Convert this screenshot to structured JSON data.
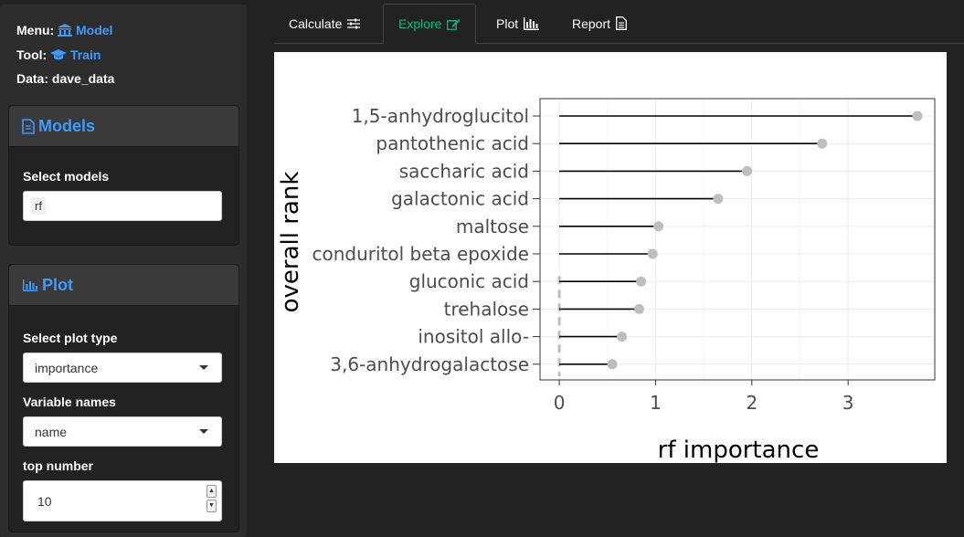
{
  "header": {
    "menu_label": "Menu:",
    "menu_value": "Model",
    "tool_label": "Tool:",
    "tool_value": "Train",
    "data_label": "Data:",
    "data_value": "dave_data"
  },
  "models_panel": {
    "title": "Models",
    "select_label": "Select models",
    "selected": "rf"
  },
  "plot_panel": {
    "title": "Plot",
    "plot_type_label": "Select plot type",
    "plot_type_value": "importance",
    "varnames_label": "Variable names",
    "varnames_value": "name",
    "top_label": "top number",
    "top_value": "10"
  },
  "tabs": [
    {
      "label": "Calculate",
      "icon": "sliders-icon"
    },
    {
      "label": "Explore",
      "icon": "edit-icon"
    },
    {
      "label": "Plot",
      "icon": "bar-chart-icon"
    },
    {
      "label": "Report",
      "icon": "file-text-icon"
    }
  ],
  "colors": {
    "accent": "#3d9bff",
    "active_tab": "#00bc8c",
    "point": "#bebebe"
  },
  "chart_data": {
    "type": "lollipop",
    "xlabel": "rf importance",
    "ylabel": "overall rank",
    "xlim": [
      -0.2,
      3.9
    ],
    "xticks": [
      0,
      1,
      2,
      3
    ],
    "grid": true,
    "reference_line": {
      "x": 0,
      "extent_rows": 4,
      "style": "dashed"
    },
    "categories": [
      "1,5-anhydroglucitol",
      "pantothenic acid",
      "saccharic acid",
      "galactonic acid",
      "maltose",
      "conduritol beta epoxide",
      "gluconic acid",
      "trehalose",
      "inositol allo-",
      "3,6-anhydrogalactose"
    ],
    "values": [
      3.72,
      2.73,
      1.95,
      1.65,
      1.03,
      0.97,
      0.85,
      0.83,
      0.65,
      0.55
    ]
  }
}
